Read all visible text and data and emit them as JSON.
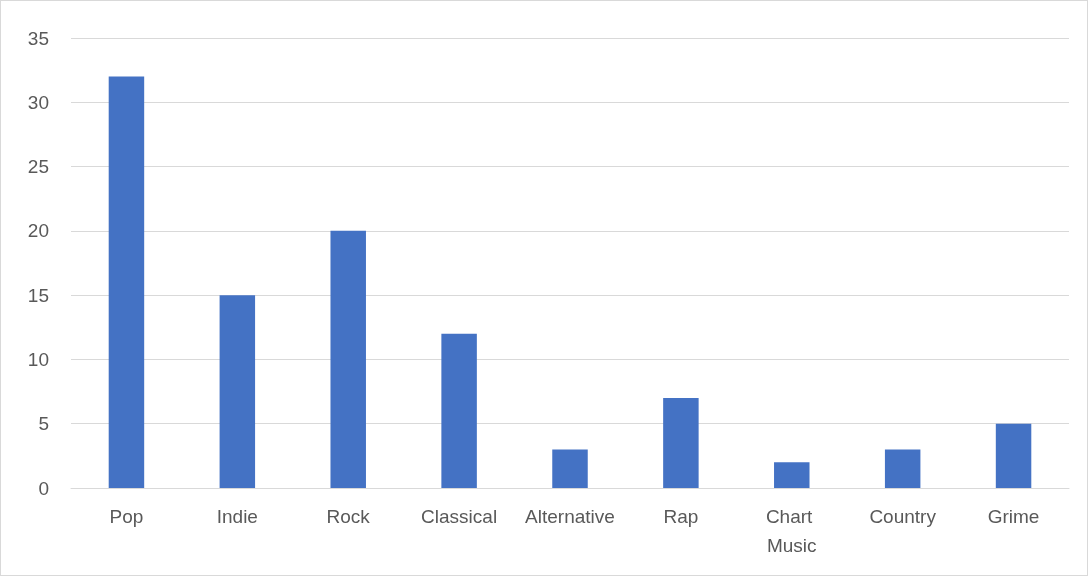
{
  "chart_data": {
    "type": "bar",
    "categories": [
      "Pop",
      "Indie",
      "Rock",
      "Classical",
      "Alternative",
      "Rap",
      "Chart Music",
      "Country",
      "Grime"
    ],
    "values": [
      32,
      15,
      20,
      12,
      3,
      7,
      2,
      3,
      5
    ],
    "color": "#4472c4",
    "ylim": [
      0,
      35
    ],
    "yticks": [
      0,
      5,
      10,
      15,
      20,
      25,
      30,
      35
    ],
    "grid": "y"
  }
}
